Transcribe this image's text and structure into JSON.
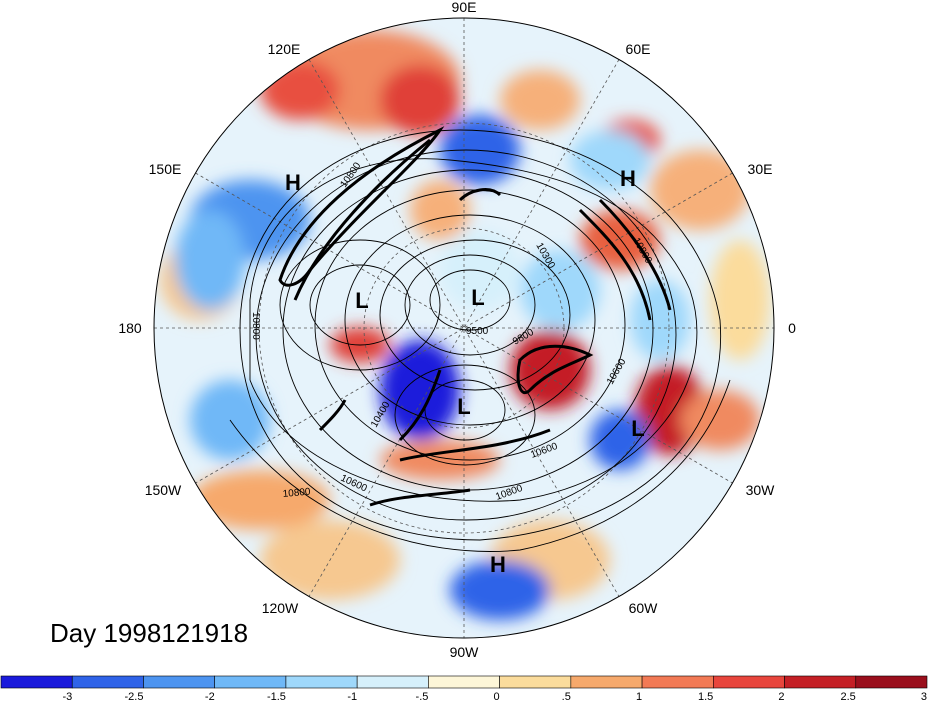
{
  "title": "Day 1998121918",
  "lon_labels": [
    "90E",
    "60E",
    "30E",
    "0",
    "30W",
    "60W",
    "90W",
    "120W",
    "150W",
    "180",
    "150E",
    "120E"
  ],
  "pressure_centers": [
    "H",
    "H",
    "L",
    "L",
    "L",
    "L",
    "H"
  ],
  "contour_labels": [
    "10800",
    "10300",
    "10800",
    "9500",
    "9800",
    "10600",
    "10600",
    "10400",
    "10600",
    "10800",
    "10800",
    "10800"
  ],
  "colorbar": {
    "colors": [
      "#1a1adb",
      "#2f63e8",
      "#4d94f0",
      "#6fb8f7",
      "#9fd8fb",
      "#d6f0fb",
      "#fdf6d8",
      "#fbdc9c",
      "#f6a96c",
      "#f27a55",
      "#e8453c",
      "#c41f25",
      "#9a0f1c"
    ],
    "tick_labels": [
      "-3",
      "-2.5",
      "-2",
      "-1.5",
      "-1",
      "-.5",
      "0",
      ".5",
      "1",
      "1.5",
      "2",
      "2.5",
      "3"
    ]
  }
}
